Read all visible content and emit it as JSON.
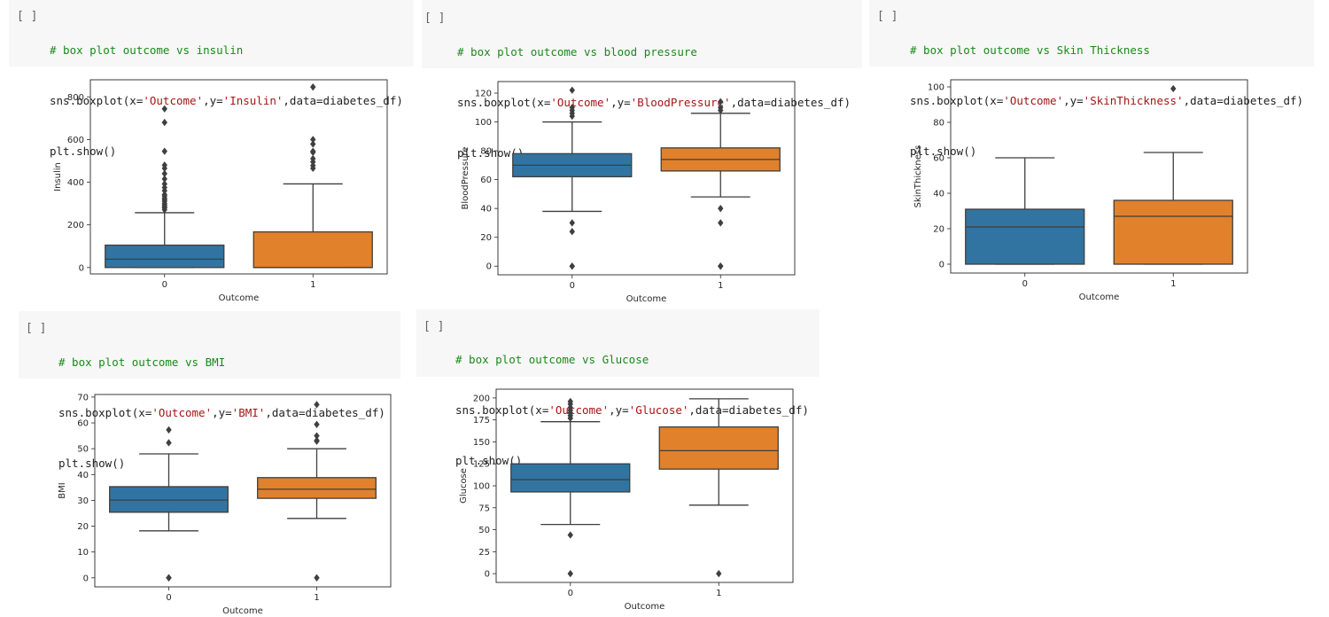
{
  "theme": {
    "code_bg": "#f7f7f7",
    "comment_color": "#1a8a1a",
    "string_color": "#a31515",
    "box_colors": [
      "#3274a1",
      "#e1812c"
    ],
    "line_color": "#3f3f3f"
  },
  "run_icon": "[ ]",
  "cells": [
    {
      "id": "insulin",
      "comment": "# box plot outcome vs insulin",
      "code_pre": "sns.boxplot(x=",
      "code_x": "'Outcome'",
      "code_mid": ",y=",
      "code_y": "'Insulin'",
      "code_post": ",data=diabetes_df)",
      "show": "plt.show()"
    },
    {
      "id": "blood-pressure",
      "comment": "# box plot outcome vs blood pressure",
      "code_pre": "sns.boxplot(x=",
      "code_x": "'Outcome'",
      "code_mid": ",y=",
      "code_y": "'BloodPressure'",
      "code_post": ",data=diabetes_df)",
      "show": "plt.show()"
    },
    {
      "id": "skin-thickness",
      "comment": "# box plot outcome vs Skin Thickness",
      "code_pre": "sns.boxplot(x=",
      "code_x": "'Outcome'",
      "code_mid": ",y=",
      "code_y": "'SkinThickness'",
      "code_post": ",data=diabetes_df)",
      "show": "plt.show()"
    },
    {
      "id": "bmi",
      "comment": "# box plot outcome vs BMI",
      "code_pre": "sns.boxplot(x=",
      "code_x": "'Outcome'",
      "code_mid": ",y=",
      "code_y": "'BMI'",
      "code_post": ",data=diabetes_df)",
      "show": "plt.show()"
    },
    {
      "id": "glucose",
      "comment": "# box plot outcome vs Glucose",
      "code_pre": "sns.boxplot(x=",
      "code_x": "'Outcome'",
      "code_mid": ",y=",
      "code_y": "'Glucose'",
      "code_post": ",data=diabetes_df)",
      "show": "plt.show()"
    }
  ],
  "chart_data": [
    {
      "type": "box",
      "xlabel": "Outcome",
      "ylabel": "Insulin",
      "categories": [
        "0",
        "1"
      ],
      "ylim": [
        -30,
        880
      ],
      "yticks": [
        0,
        200,
        400,
        600,
        800
      ],
      "boxes": [
        {
          "category": "0",
          "whisker_low": 0,
          "q1": 0,
          "median": 39,
          "q3": 105,
          "whisker_high": 257,
          "outliers": [
            271,
            280,
            285,
            293,
            300,
            310,
            318,
            325,
            335,
            342,
            360,
            375,
            392,
            415,
            440,
            465,
            480,
            545,
            680,
            744
          ]
        },
        {
          "category": "1",
          "whisker_low": 0,
          "q1": 0,
          "median": 0,
          "q3": 167,
          "whisker_high": 392,
          "outliers": [
            465,
            478,
            495,
            510,
            540,
            545,
            579,
            600,
            846
          ]
        }
      ]
    },
    {
      "type": "box",
      "xlabel": "Outcome",
      "ylabel": "BloodPressure",
      "categories": [
        "0",
        "1"
      ],
      "ylim": [
        -6,
        128
      ],
      "yticks": [
        0,
        20,
        40,
        60,
        80,
        100,
        120
      ],
      "boxes": [
        {
          "category": "0",
          "whisker_low": 38,
          "q1": 62,
          "median": 70,
          "q3": 78,
          "whisker_high": 100,
          "outliers": [
            0,
            0,
            24,
            30,
            104,
            106,
            108,
            110,
            122
          ]
        },
        {
          "category": "1",
          "whisker_low": 48,
          "q1": 66,
          "median": 74,
          "q3": 82,
          "whisker_high": 106,
          "outliers": [
            0,
            0,
            30,
            40,
            108,
            110,
            114
          ]
        }
      ]
    },
    {
      "type": "box",
      "xlabel": "Outcome",
      "ylabel": "SkinThickness",
      "categories": [
        "0",
        "1"
      ],
      "ylim": [
        -5,
        104
      ],
      "yticks": [
        0,
        20,
        40,
        60,
        80,
        100
      ],
      "boxes": [
        {
          "category": "0",
          "whisker_low": 0,
          "q1": 0,
          "median": 21,
          "q3": 31,
          "whisker_high": 60,
          "outliers": []
        },
        {
          "category": "1",
          "whisker_low": 0,
          "q1": 0,
          "median": 27,
          "q3": 36,
          "whisker_high": 63,
          "outliers": [
            99
          ]
        }
      ]
    },
    {
      "type": "box",
      "xlabel": "Outcome",
      "ylabel": "BMI",
      "categories": [
        "0",
        "1"
      ],
      "ylim": [
        -3.5,
        71
      ],
      "yticks": [
        0,
        10,
        20,
        30,
        40,
        50,
        60,
        70
      ],
      "boxes": [
        {
          "category": "0",
          "whisker_low": 18.2,
          "q1": 25.4,
          "median": 30.1,
          "q3": 35.3,
          "whisker_high": 48,
          "outliers": [
            0,
            0,
            52.3,
            57.3
          ]
        },
        {
          "category": "1",
          "whisker_low": 23,
          "q1": 30.8,
          "median": 34.3,
          "q3": 38.8,
          "whisker_high": 50,
          "outliers": [
            0,
            52.9,
            53.2,
            55,
            59.4,
            67.1
          ]
        }
      ]
    },
    {
      "type": "box",
      "xlabel": "Outcome",
      "ylabel": "Glucose",
      "categories": [
        "0",
        "1"
      ],
      "ylim": [
        -10,
        210
      ],
      "yticks": [
        0,
        25,
        50,
        75,
        100,
        125,
        150,
        175,
        200
      ],
      "boxes": [
        {
          "category": "0",
          "whisker_low": 56,
          "q1": 93,
          "median": 107,
          "q3": 125,
          "whisker_high": 173,
          "outliers": [
            0,
            44,
            177,
            180,
            183,
            186,
            189,
            193,
            196
          ]
        },
        {
          "category": "1",
          "whisker_low": 78,
          "q1": 119,
          "median": 140,
          "q3": 167,
          "whisker_high": 199,
          "outliers": [
            0
          ]
        }
      ]
    }
  ]
}
